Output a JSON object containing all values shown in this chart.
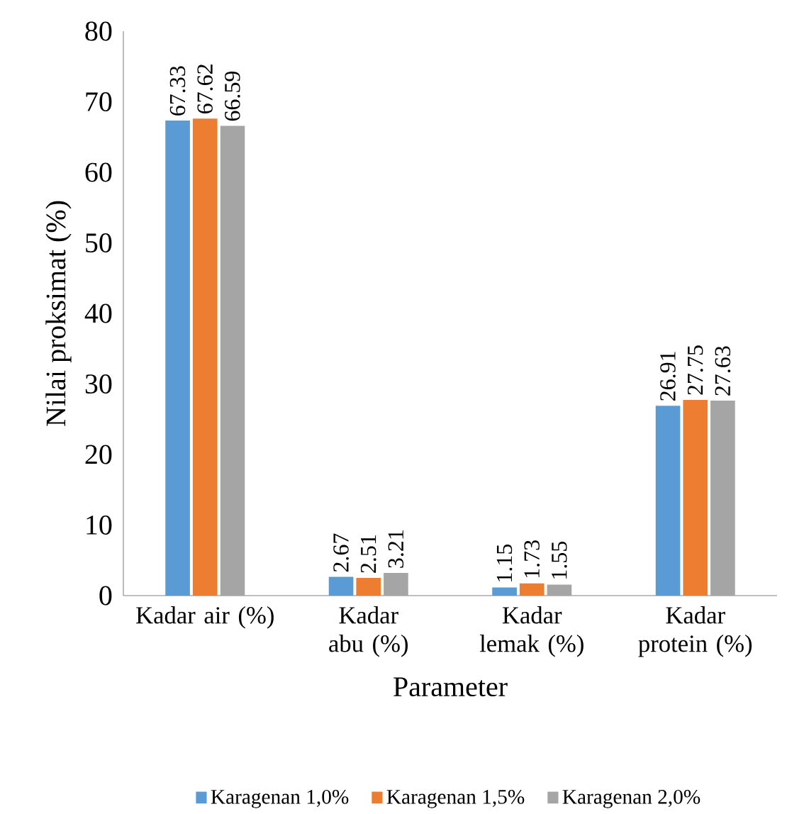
{
  "chart_data": {
    "type": "bar",
    "xlabel": "Parameter",
    "ylabel": "Nilai proksimat (%)",
    "categories": [
      "Kadar air (%)",
      "Kadar abu (%)",
      "Kadar lemak (%)",
      "Kadar protein (%)"
    ],
    "series": [
      {
        "name": "Karagenan 1,0%",
        "color": "#5b9bd5",
        "values": [
          67.33,
          2.67,
          1.15,
          26.91
        ]
      },
      {
        "name": "Karagenan 1,5%",
        "color": "#ed7d31",
        "values": [
          67.62,
          2.51,
          1.73,
          27.75
        ]
      },
      {
        "name": "Karagenan 2,0%",
        "color": "#a5a5a5",
        "values": [
          66.59,
          3.21,
          1.55,
          27.63
        ]
      }
    ],
    "ylim": [
      0,
      80
    ],
    "yticks": [
      0,
      10,
      20,
      30,
      40,
      50,
      60,
      70,
      80
    ],
    "data_labels": true,
    "grid": false,
    "legend": "bottom"
  }
}
